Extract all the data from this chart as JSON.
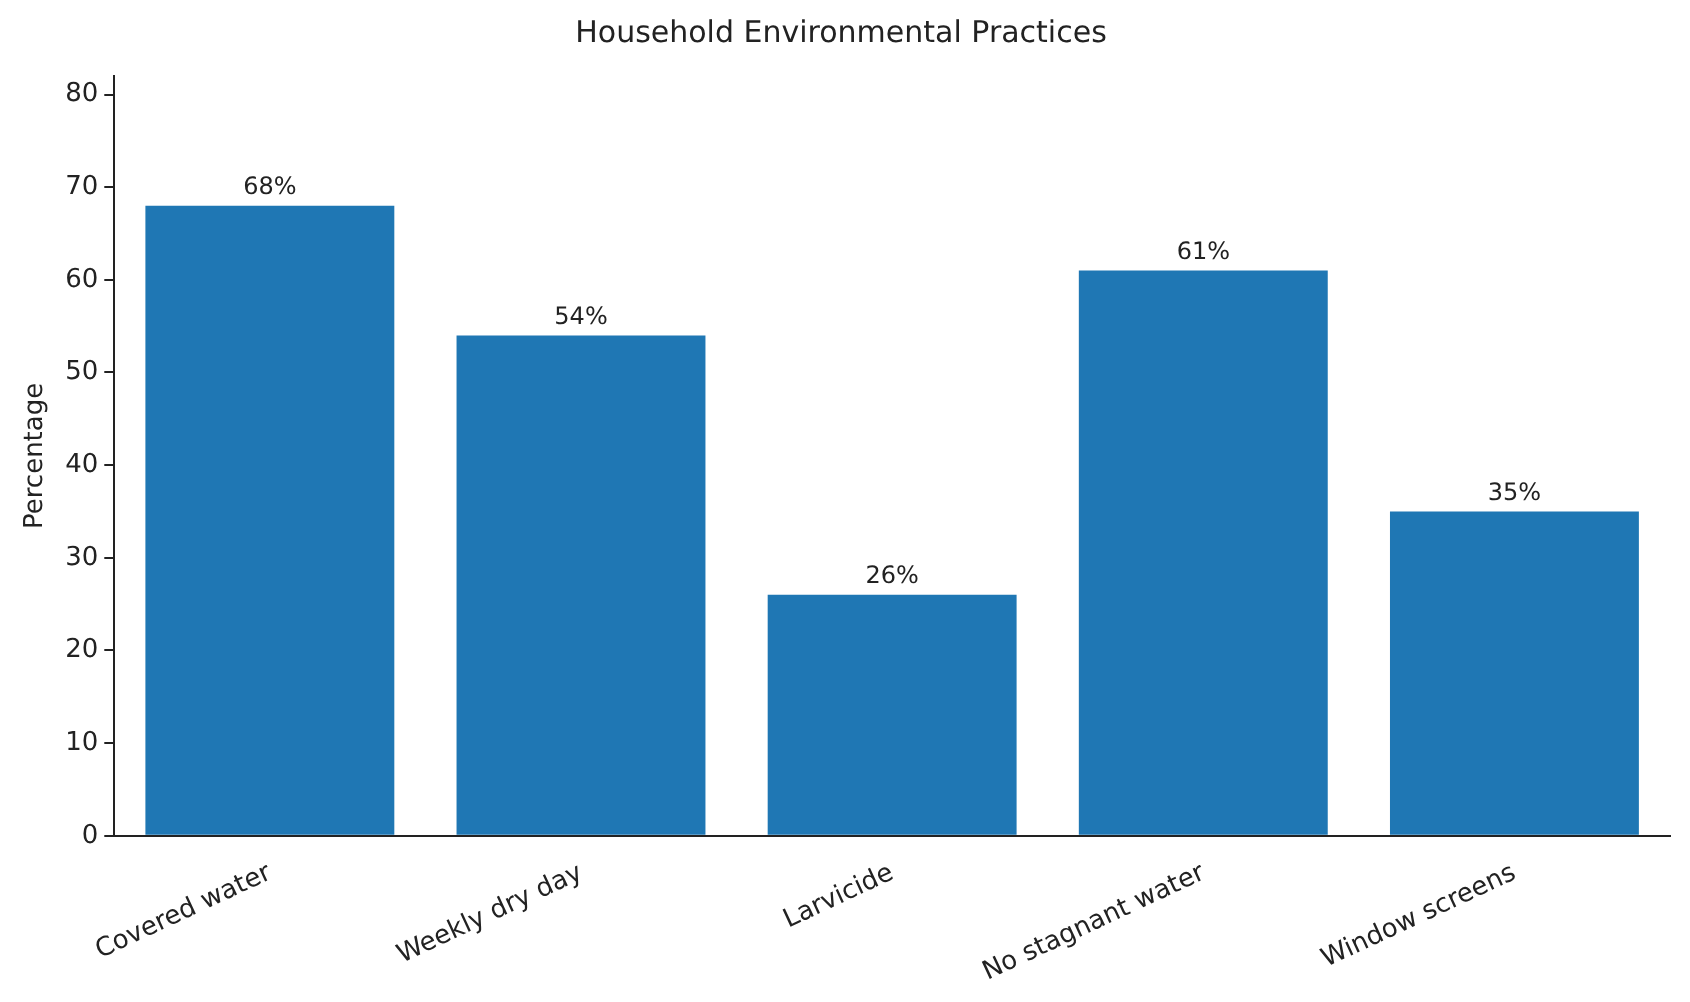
{
  "chart_data": {
    "type": "bar",
    "title": "Household Environmental Practices",
    "ylabel": "Percentage",
    "categories": [
      "Covered water",
      "Weekly dry day",
      "Larvicide",
      "No stagnant water",
      "Window screens"
    ],
    "values": [
      68,
      54,
      26,
      61,
      35
    ],
    "value_labels": [
      "68%",
      "54%",
      "26%",
      "61%",
      "35%"
    ],
    "color": "#1f77b4",
    "ylim": [
      0,
      82
    ],
    "yticks": [
      0,
      10,
      20,
      30,
      40,
      50,
      60,
      70,
      80
    ],
    "grid": false,
    "legend": false
  }
}
